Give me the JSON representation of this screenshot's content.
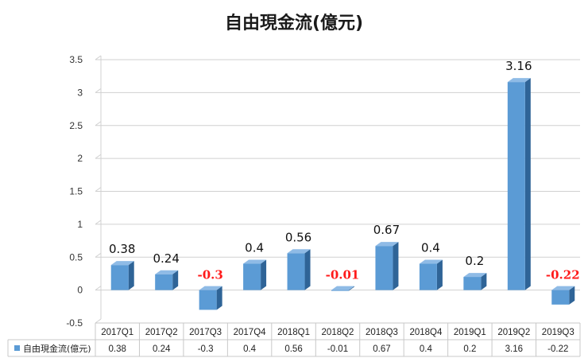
{
  "chart_data": {
    "type": "bar",
    "title": "自由現金流(億元)",
    "categories": [
      "2017Q1",
      "2017Q2",
      "2017Q3",
      "2017Q4",
      "2018Q1",
      "2018Q2",
      "2018Q3",
      "2018Q4",
      "2019Q1",
      "2019Q2",
      "2019Q3"
    ],
    "series": [
      {
        "name": "自由現金流(億元)",
        "values": [
          0.38,
          0.24,
          -0.3,
          0.4,
          0.56,
          -0.01,
          0.67,
          0.4,
          0.2,
          3.16,
          -0.22
        ],
        "value_labels": [
          "0.38",
          "0.24",
          "-0.3",
          "0.4",
          "0.56",
          "-0.01",
          "0.67",
          "0.4",
          "0.2",
          "3.16",
          "-0.22"
        ]
      }
    ],
    "ylim": [
      -0.5,
      3.5
    ],
    "yticks": [
      "3.5",
      "3",
      "2.5",
      "2",
      "1.5",
      "1",
      "0.5",
      "0",
      "-0.5"
    ],
    "ytick_values": [
      3.5,
      3,
      2.5,
      2,
      1.5,
      1,
      0.5,
      0,
      -0.5
    ],
    "grid": true,
    "legend": "data-table-bottom",
    "colors": {
      "bar_front": "#5b9bd5",
      "bar_side": "#2f6497",
      "bar_top": "#8fbbe6",
      "negative_label": "#ff1a1a",
      "grid": "#d0d0d0"
    }
  }
}
